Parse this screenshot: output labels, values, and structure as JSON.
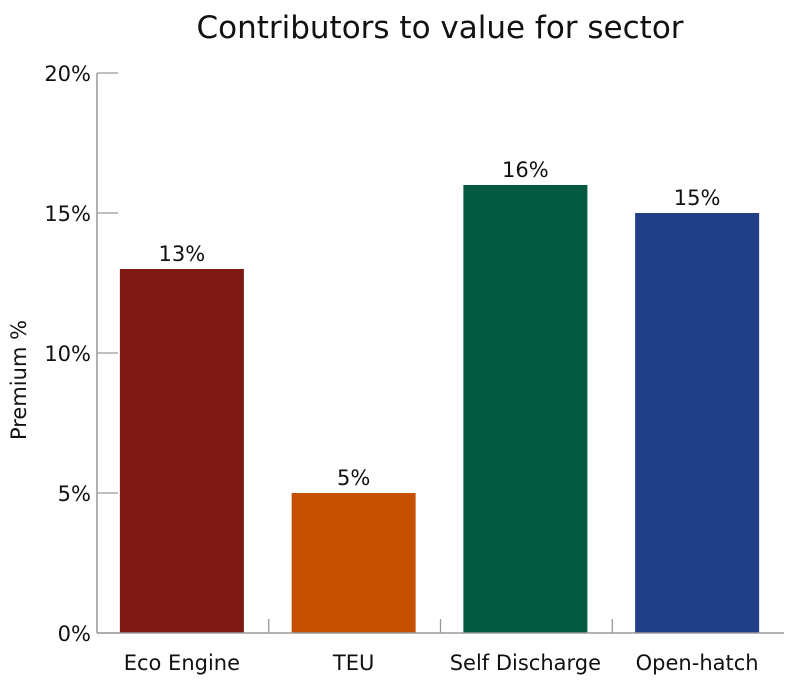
{
  "chart_data": {
    "type": "bar",
    "title": "Contributors to value for sector",
    "xlabel": "",
    "ylabel": "Premium %",
    "categories": [
      "Eco Engine",
      "TEU",
      "Self Discharge",
      "Open-hatch"
    ],
    "values": [
      13,
      5,
      16,
      15
    ],
    "data_labels": [
      "13%",
      "5%",
      "16%",
      "15%"
    ],
    "colors": [
      "#7f1914",
      "#c75000",
      "#045a40",
      "#213f86"
    ],
    "ylim": [
      0,
      20
    ],
    "yticks": [
      0,
      5,
      10,
      15,
      20
    ],
    "ytick_labels": [
      "0%",
      "5%",
      "10%",
      "15%",
      "20%"
    ],
    "grid": false,
    "legend": "none"
  }
}
